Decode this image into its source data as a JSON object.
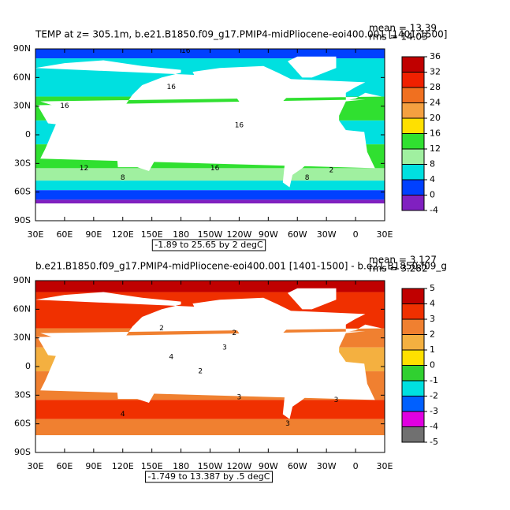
{
  "x_labels": [
    "30E",
    "60E",
    "90E",
    "120E",
    "150E",
    "180",
    "150W",
    "120W",
    "90W",
    "60W",
    "30W",
    "0",
    "30E"
  ],
  "y_labels": [
    "90N",
    "60N",
    "30N",
    "0",
    "30S",
    "60S",
    "90S"
  ],
  "panels": [
    {
      "title": "TEMP at z= 305.1m, b.e21.B1850.f09_g17.PMIP4-midPliocene-eoi400.001 [1401-1500]",
      "mean": "mean = 13.39",
      "rms": "rms = 14.03",
      "footer": "-1.89 to 25.65 by 2 degC",
      "colorbar": {
        "levels": [
          36,
          32,
          28,
          24,
          20,
          16,
          12,
          8,
          4,
          0,
          -4
        ],
        "colors": [
          "#c00000",
          "#f02000",
          "#f07020",
          "#f4a040",
          "#ffe000",
          "#30e030",
          "#a0f0a0",
          "#00e0e0",
          "#0040ff",
          "#8020c0"
        ]
      },
      "contour_labels": [
        "16",
        "16",
        "16",
        "12",
        "8",
        "2",
        "8",
        "16",
        "16"
      ]
    },
    {
      "title": "b.e21.B1850.f09_g17.PMIP4-midPliocene-eoi400.001 [1401-1500] - b.e21.B1850.f09_g",
      "mean": "mean = 3.127",
      "rms": "rms = 3.282",
      "footer": "-1.749 to 13.387 by .5 degC",
      "colorbar": {
        "levels": [
          5,
          4,
          3,
          2,
          1,
          0,
          -1,
          -2,
          -3,
          -4,
          -5
        ],
        "colors": [
          "#c00000",
          "#f03000",
          "#f08030",
          "#f4b040",
          "#ffe000",
          "#30d030",
          "#00e0e0",
          "#0060ff",
          "#e000e0",
          "#707070"
        ]
      },
      "contour_labels": [
        "2",
        "2",
        "3",
        "4",
        "2",
        "3",
        "3",
        "4",
        "3"
      ]
    }
  ]
}
